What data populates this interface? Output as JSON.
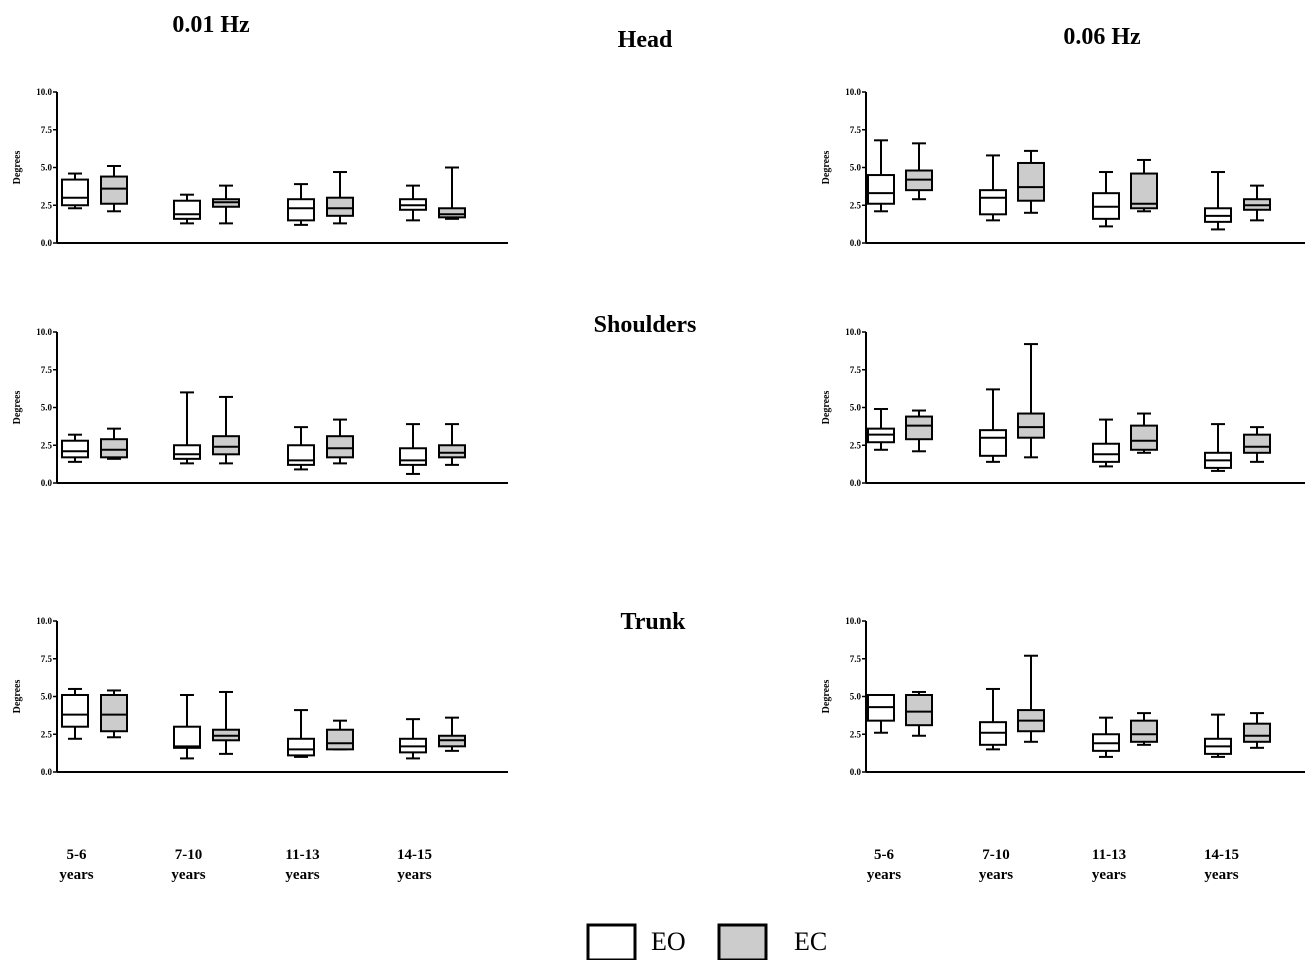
{
  "titles": {
    "left": "0.01 Hz",
    "right": "0.06 Hz",
    "rows": [
      "Head",
      "Shoulders",
      "Trunk"
    ]
  },
  "legend": [
    {
      "label": "EO",
      "color": "#ffffff"
    },
    {
      "label": "EC",
      "color": "#cccccc"
    }
  ],
  "colors": {
    "EO": "#ffffff",
    "EC": "#cccccc",
    "line": "#000000"
  },
  "chart_data": [
    {
      "type": "boxplot",
      "region": "Head",
      "frequency": "0.01 Hz",
      "ylabel": "Degrees",
      "ylim": [
        0,
        10
      ],
      "yticks": [
        "0.0",
        "2.5",
        "5.0",
        "7.5",
        "10.0"
      ],
      "categories": [
        "5-6 years",
        "7-10 years",
        "11-13 years",
        "14-15 years"
      ],
      "series": [
        {
          "name": "EO",
          "boxes": [
            {
              "min": 2.3,
              "q1": 2.5,
              "median": 3.0,
              "q3": 4.2,
              "max": 4.6
            },
            {
              "min": 1.3,
              "q1": 1.6,
              "median": 1.9,
              "q3": 2.8,
              "max": 3.2
            },
            {
              "min": 1.2,
              "q1": 1.5,
              "median": 2.3,
              "q3": 2.9,
              "max": 3.9
            },
            {
              "min": 1.5,
              "q1": 2.2,
              "median": 2.5,
              "q3": 2.9,
              "max": 3.8
            }
          ]
        },
        {
          "name": "EC",
          "boxes": [
            {
              "min": 2.1,
              "q1": 2.6,
              "median": 3.6,
              "q3": 4.4,
              "max": 5.1
            },
            {
              "min": 1.3,
              "q1": 2.4,
              "median": 2.7,
              "q3": 2.9,
              "max": 3.8
            },
            {
              "min": 1.3,
              "q1": 1.8,
              "median": 2.3,
              "q3": 3.0,
              "max": 4.7
            },
            {
              "min": 1.6,
              "q1": 1.7,
              "median": 1.9,
              "q3": 2.3,
              "max": 5.0
            }
          ]
        }
      ]
    },
    {
      "type": "boxplot",
      "region": "Head",
      "frequency": "0.06 Hz",
      "ylabel": "Degrees",
      "ylim": [
        0,
        10
      ],
      "yticks": [
        "0.0",
        "2.5",
        "5.0",
        "7.5",
        "10.0"
      ],
      "categories": [
        "5-6 years",
        "7-10 years",
        "11-13 years",
        "14-15 years"
      ],
      "series": [
        {
          "name": "EO",
          "boxes": [
            {
              "min": 2.1,
              "q1": 2.6,
              "median": 3.3,
              "q3": 4.5,
              "max": 6.8
            },
            {
              "min": 1.5,
              "q1": 1.9,
              "median": 3.0,
              "q3": 3.5,
              "max": 5.8
            },
            {
              "min": 1.1,
              "q1": 1.6,
              "median": 2.4,
              "q3": 3.3,
              "max": 4.7
            },
            {
              "min": 0.9,
              "q1": 1.4,
              "median": 1.8,
              "q3": 2.3,
              "max": 4.7
            }
          ]
        },
        {
          "name": "EC",
          "boxes": [
            {
              "min": 2.9,
              "q1": 3.5,
              "median": 4.2,
              "q3": 4.8,
              "max": 6.6
            },
            {
              "min": 2.0,
              "q1": 2.8,
              "median": 3.7,
              "q3": 5.3,
              "max": 6.1
            },
            {
              "min": 2.1,
              "q1": 2.3,
              "median": 2.6,
              "q3": 4.6,
              "max": 5.5
            },
            {
              "min": 1.5,
              "q1": 2.2,
              "median": 2.5,
              "q3": 2.9,
              "max": 3.8
            }
          ]
        }
      ]
    },
    {
      "type": "boxplot",
      "region": "Shoulders",
      "frequency": "0.01 Hz",
      "ylabel": "Degrees",
      "ylim": [
        0,
        10
      ],
      "yticks": [
        "0.0",
        "2.5",
        "5.0",
        "7.5",
        "10.0"
      ],
      "categories": [
        "5-6 years",
        "7-10 years",
        "11-13 years",
        "14-15 years"
      ],
      "series": [
        {
          "name": "EO",
          "boxes": [
            {
              "min": 1.4,
              "q1": 1.7,
              "median": 2.1,
              "q3": 2.8,
              "max": 3.2
            },
            {
              "min": 1.3,
              "q1": 1.6,
              "median": 1.9,
              "q3": 2.5,
              "max": 6.0
            },
            {
              "min": 0.9,
              "q1": 1.2,
              "median": 1.5,
              "q3": 2.5,
              "max": 3.7
            },
            {
              "min": 0.6,
              "q1": 1.2,
              "median": 1.5,
              "q3": 2.3,
              "max": 3.9
            }
          ]
        },
        {
          "name": "EC",
          "boxes": [
            {
              "min": 1.6,
              "q1": 1.7,
              "median": 2.2,
              "q3": 2.9,
              "max": 3.6
            },
            {
              "min": 1.3,
              "q1": 1.9,
              "median": 2.4,
              "q3": 3.1,
              "max": 5.7
            },
            {
              "min": 1.3,
              "q1": 1.7,
              "median": 2.3,
              "q3": 3.1,
              "max": 4.2
            },
            {
              "min": 1.2,
              "q1": 1.7,
              "median": 2.0,
              "q3": 2.5,
              "max": 3.9
            }
          ]
        }
      ]
    },
    {
      "type": "boxplot",
      "region": "Shoulders",
      "frequency": "0.06 Hz",
      "ylabel": "Degrees",
      "ylim": [
        0,
        10
      ],
      "yticks": [
        "0.0",
        "2.5",
        "5.0",
        "7.5",
        "10.0"
      ],
      "categories": [
        "5-6 years",
        "7-10 years",
        "11-13 years",
        "14-15 years"
      ],
      "series": [
        {
          "name": "EO",
          "boxes": [
            {
              "min": 2.2,
              "q1": 2.7,
              "median": 3.2,
              "q3": 3.6,
              "max": 4.9
            },
            {
              "min": 1.4,
              "q1": 1.8,
              "median": 3.0,
              "q3": 3.5,
              "max": 6.2
            },
            {
              "min": 1.1,
              "q1": 1.4,
              "median": 1.9,
              "q3": 2.6,
              "max": 4.2
            },
            {
              "min": 0.8,
              "q1": 1.0,
              "median": 1.5,
              "q3": 2.0,
              "max": 3.9
            }
          ]
        },
        {
          "name": "EC",
          "boxes": [
            {
              "min": 2.1,
              "q1": 2.9,
              "median": 3.8,
              "q3": 4.4,
              "max": 4.8
            },
            {
              "min": 1.7,
              "q1": 3.0,
              "median": 3.7,
              "q3": 4.6,
              "max": 9.2
            },
            {
              "min": 2.0,
              "q1": 2.2,
              "median": 2.8,
              "q3": 3.8,
              "max": 4.6
            },
            {
              "min": 1.4,
              "q1": 2.0,
              "median": 2.4,
              "q3": 3.2,
              "max": 3.7
            }
          ]
        }
      ]
    },
    {
      "type": "boxplot",
      "region": "Trunk",
      "frequency": "0.01 Hz",
      "ylabel": "Degrees",
      "ylim": [
        0,
        10
      ],
      "yticks": [
        "0.0",
        "2.5",
        "5.0",
        "7.5",
        "10.0"
      ],
      "categories": [
        "5-6 years",
        "7-10 years",
        "11-13 years",
        "14-15 years"
      ],
      "series": [
        {
          "name": "EO",
          "boxes": [
            {
              "min": 2.2,
              "q1": 3.0,
              "median": 3.8,
              "q3": 5.1,
              "max": 5.5
            },
            {
              "min": 0.9,
              "q1": 1.6,
              "median": 1.7,
              "q3": 3.0,
              "max": 5.1
            },
            {
              "min": 1.0,
              "q1": 1.1,
              "median": 1.5,
              "q3": 2.2,
              "max": 4.1
            },
            {
              "min": 0.9,
              "q1": 1.3,
              "median": 1.7,
              "q3": 2.2,
              "max": 3.5
            }
          ]
        },
        {
          "name": "EC",
          "boxes": [
            {
              "min": 2.3,
              "q1": 2.7,
              "median": 3.8,
              "q3": 5.1,
              "max": 5.4
            },
            {
              "min": 1.2,
              "q1": 2.1,
              "median": 2.4,
              "q3": 2.8,
              "max": 5.3
            },
            {
              "min": 1.5,
              "q1": 1.5,
              "median": 1.9,
              "q3": 2.8,
              "max": 3.4
            },
            {
              "min": 1.4,
              "q1": 1.7,
              "median": 2.1,
              "q3": 2.4,
              "max": 3.6
            }
          ]
        }
      ]
    },
    {
      "type": "boxplot",
      "region": "Trunk",
      "frequency": "0.06 Hz",
      "ylabel": "Degrees",
      "ylim": [
        0,
        10
      ],
      "yticks": [
        "0.0",
        "2.5",
        "5.0",
        "7.5",
        "10.0"
      ],
      "categories": [
        "5-6 years",
        "7-10 years",
        "11-13 years",
        "14-15 years"
      ],
      "series": [
        {
          "name": "EO",
          "boxes": [
            {
              "min": 2.6,
              "q1": 3.4,
              "median": 4.3,
              "q3": 5.1,
              "max": 5.1
            },
            {
              "min": 1.5,
              "q1": 1.8,
              "median": 2.6,
              "q3": 3.3,
              "max": 5.5
            },
            {
              "min": 1.0,
              "q1": 1.4,
              "median": 1.9,
              "q3": 2.5,
              "max": 3.6
            },
            {
              "min": 1.0,
              "q1": 1.2,
              "median": 1.7,
              "q3": 2.2,
              "max": 3.8
            }
          ]
        },
        {
          "name": "EC",
          "boxes": [
            {
              "min": 2.4,
              "q1": 3.1,
              "median": 4.0,
              "q3": 5.1,
              "max": 5.3
            },
            {
              "min": 2.0,
              "q1": 2.7,
              "median": 3.4,
              "q3": 4.1,
              "max": 7.7
            },
            {
              "min": 1.8,
              "q1": 2.0,
              "median": 2.5,
              "q3": 3.4,
              "max": 3.9
            },
            {
              "min": 1.6,
              "q1": 2.0,
              "median": 2.4,
              "q3": 3.2,
              "max": 3.9
            }
          ]
        }
      ]
    }
  ]
}
